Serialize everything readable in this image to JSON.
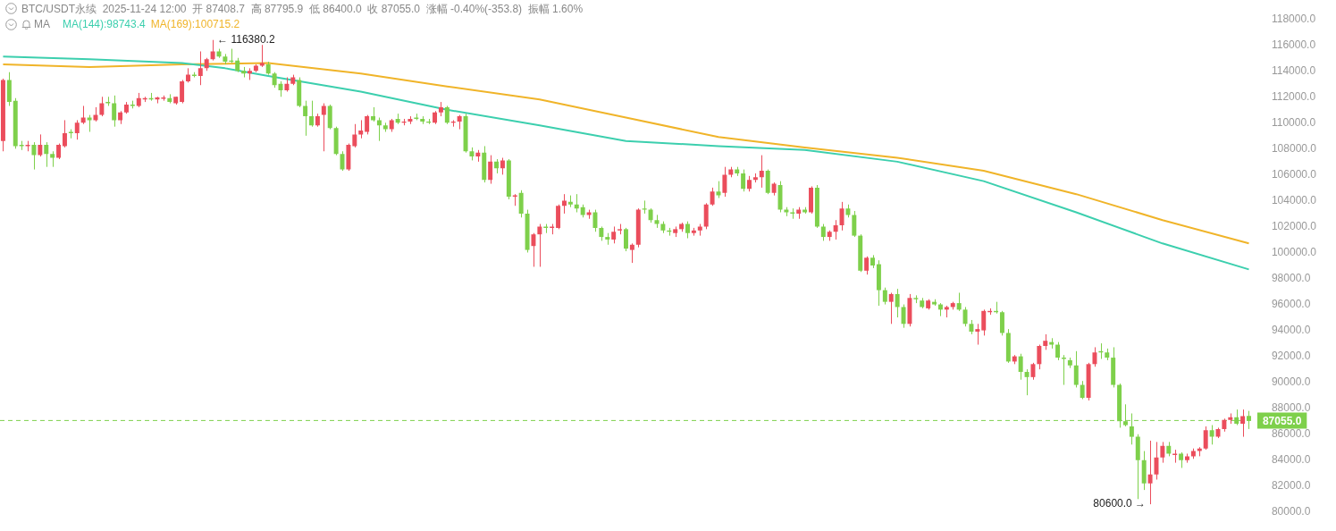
{
  "chart_data": {
    "type": "candlestick",
    "title": "BTC/USDT永续  2025-11-24 12:00  开 87408.7  高 87795.9  低 86400.0  收 87055.0  涨幅 -0.40%(-353.8)  振幅 1.60%",
    "legend_title": "MA",
    "legend": "top left",
    "tick_labels": "y",
    "categories": [
      null,
      null,
      null,
      null,
      null,
      null,
      null,
      null,
      null,
      null,
      null,
      null,
      null,
      null,
      null,
      null,
      null,
      null,
      null,
      null,
      null,
      null,
      null,
      null,
      null,
      null,
      null,
      null,
      null,
      null,
      null,
      null,
      null,
      null,
      null,
      null,
      null,
      null,
      null,
      null,
      null,
      null,
      null,
      null,
      null,
      null,
      null,
      null,
      null,
      null,
      null,
      null,
      null,
      null,
      null,
      null,
      null,
      null,
      null,
      null,
      null,
      null,
      null,
      null,
      null,
      null,
      null,
      null,
      null,
      null,
      null,
      null,
      null,
      null,
      null,
      null,
      null,
      null,
      null,
      null,
      null,
      null,
      null,
      null,
      null,
      null,
      null,
      null,
      null,
      null,
      null,
      null,
      null,
      null,
      null,
      null,
      null,
      null,
      null,
      null,
      null,
      null,
      null,
      null,
      null,
      null,
      null,
      null,
      null,
      null,
      null,
      null,
      null,
      null,
      null,
      null,
      null,
      null,
      null,
      null,
      null,
      null,
      null,
      null,
      null,
      null,
      null,
      null,
      null,
      null,
      null,
      null,
      null,
      null,
      null,
      null,
      null,
      null,
      null,
      null,
      null,
      null,
      null,
      null,
      null,
      null,
      null,
      null,
      null,
      null,
      null,
      null,
      null,
      null,
      null,
      null,
      null,
      null,
      null,
      null,
      null,
      null,
      null,
      null,
      null,
      null,
      null,
      null,
      null,
      null,
      null,
      null,
      null,
      null,
      null,
      null,
      null,
      null,
      null,
      null,
      null,
      null,
      null,
      null,
      null,
      null,
      null,
      null,
      null,
      null,
      null,
      null,
      null,
      null,
      null,
      null,
      null,
      null,
      null,
      null,
      null,
      null,
      null
    ],
    "ohlc": [
      [
        108600,
        113400,
        107800,
        113300
      ],
      [
        113300,
        113900,
        111300,
        111600
      ],
      [
        111700,
        111900,
        108000,
        108200
      ],
      [
        108300,
        108600,
        107900,
        108200
      ],
      [
        108200,
        108600,
        107800,
        108300
      ],
      [
        108300,
        108500,
        106400,
        107500
      ],
      [
        107500,
        109100,
        107400,
        108300
      ],
      [
        108300,
        108500,
        106600,
        107600
      ],
      [
        107600,
        107800,
        106600,
        107300
      ],
      [
        107300,
        108400,
        107200,
        108300
      ],
      [
        108200,
        110200,
        108100,
        109200
      ],
      [
        109300,
        109500,
        108800,
        109200
      ],
      [
        109200,
        110200,
        108700,
        110000
      ],
      [
        110000,
        111300,
        109900,
        110400
      ],
      [
        110400,
        110600,
        109300,
        110200
      ],
      [
        110200,
        111200,
        110100,
        110600
      ],
      [
        110600,
        112000,
        110500,
        111500
      ],
      [
        111600,
        112000,
        111300,
        111500
      ],
      [
        111500,
        112100,
        109700,
        110200
      ],
      [
        110200,
        110900,
        109900,
        110800
      ],
      [
        110800,
        111600,
        110700,
        111400
      ],
      [
        111400,
        111700,
        111100,
        111300
      ],
      [
        111300,
        112300,
        111200,
        111900
      ],
      [
        111800,
        112000,
        111600,
        111900
      ],
      [
        111900,
        112300,
        111700,
        111800
      ],
      [
        111800,
        112000,
        111500,
        111950
      ],
      [
        111850,
        112100,
        111700,
        111950
      ],
      [
        111900,
        112200,
        111500,
        111600
      ],
      [
        111500,
        112000,
        111400,
        112000
      ],
      [
        111600,
        113300,
        111500,
        113200
      ],
      [
        113200,
        114200,
        113100,
        113700
      ],
      [
        113700,
        113900,
        113500,
        113600
      ],
      [
        113600,
        115500,
        112900,
        114200
      ],
      [
        114200,
        115000,
        114000,
        114900
      ],
      [
        114900,
        116380.2,
        114800,
        115500
      ],
      [
        115500,
        115700,
        115000,
        115100
      ],
      [
        115100,
        115300,
        114500,
        114700
      ],
      [
        114800,
        115700,
        114600,
        114700
      ],
      [
        114800,
        115000,
        113900,
        114000
      ],
      [
        114000,
        114300,
        113500,
        113800
      ],
      [
        113800,
        114200,
        113300,
        114000
      ],
      [
        114000,
        114500,
        113900,
        114400
      ],
      [
        114400,
        116000,
        114300,
        114600
      ],
      [
        114500,
        114700,
        113700,
        113800
      ],
      [
        113800,
        113900,
        112700,
        112900
      ],
      [
        113000,
        113200,
        112000,
        112500
      ],
      [
        112500,
        113500,
        112400,
        113000
      ],
      [
        113000,
        113700,
        112900,
        113500
      ],
      [
        113300,
        113500,
        111200,
        111300
      ],
      [
        111300,
        111700,
        109000,
        110500
      ],
      [
        110500,
        111700,
        109700,
        109800
      ],
      [
        109800,
        110700,
        109700,
        110500
      ],
      [
        110600,
        111500,
        107800,
        111300
      ],
      [
        111300,
        111400,
        109500,
        109600
      ],
      [
        109600,
        109700,
        107500,
        107600
      ],
      [
        107600,
        107800,
        106300,
        106400
      ],
      [
        106400,
        108400,
        106300,
        108300
      ],
      [
        108200,
        109900,
        108100,
        109100
      ],
      [
        109100,
        110200,
        108800,
        109400
      ],
      [
        109300,
        110600,
        109100,
        110500
      ],
      [
        110500,
        111200,
        110100,
        110200
      ],
      [
        110200,
        110400,
        108600,
        109800
      ],
      [
        109800,
        110000,
        109300,
        109500
      ],
      [
        109500,
        110300,
        109300,
        110200
      ],
      [
        110300,
        110700,
        109900,
        110000
      ],
      [
        110000,
        110300,
        109800,
        110100
      ],
      [
        110100,
        110500,
        109900,
        110300
      ],
      [
        110400,
        110700,
        110200,
        110300
      ],
      [
        110300,
        110500,
        109900,
        110100
      ],
      [
        110100,
        110300,
        109900,
        110000
      ],
      [
        110000,
        110900,
        109900,
        110800
      ],
      [
        110800,
        111600,
        110500,
        111200
      ],
      [
        111200,
        111300,
        109900,
        110000
      ],
      [
        110000,
        110200,
        109700,
        110100
      ],
      [
        110100,
        110600,
        109500,
        110500
      ],
      [
        110500,
        110700,
        107700,
        107800
      ],
      [
        107800,
        108100,
        107100,
        107400
      ],
      [
        107400,
        107900,
        107000,
        107700
      ],
      [
        107700,
        108200,
        105400,
        105600
      ],
      [
        105600,
        107500,
        105300,
        107000
      ],
      [
        107000,
        107200,
        106100,
        106500
      ],
      [
        106500,
        107300,
        106000,
        107100
      ],
      [
        107100,
        107200,
        104100,
        104300
      ],
      [
        104300,
        104500,
        103600,
        104400
      ],
      [
        104600,
        104800,
        102700,
        103000
      ],
      [
        103000,
        103300,
        100000,
        100200
      ],
      [
        100500,
        101500,
        98900,
        101400
      ],
      [
        101400,
        102200,
        98900,
        102000
      ],
      [
        102000,
        102200,
        101500,
        101900
      ],
      [
        101900,
        102200,
        101400,
        102000
      ],
      [
        101900,
        103700,
        101800,
        103600
      ],
      [
        103600,
        104500,
        103000,
        104000
      ],
      [
        103900,
        104400,
        103500,
        103700
      ],
      [
        103700,
        104500,
        103100,
        103400
      ],
      [
        103500,
        103700,
        102700,
        102900
      ],
      [
        102900,
        103300,
        102600,
        103100
      ],
      [
        103100,
        103300,
        101600,
        101900
      ],
      [
        101900,
        102000,
        100900,
        101200
      ],
      [
        101200,
        101500,
        100600,
        101000
      ],
      [
        101000,
        102000,
        100700,
        101600
      ],
      [
        101700,
        102200,
        101400,
        101800
      ],
      [
        101800,
        101900,
        100100,
        100300
      ],
      [
        100200,
        100700,
        99200,
        100600
      ],
      [
        100600,
        103400,
        100400,
        103300
      ],
      [
        103400,
        104000,
        103000,
        103300
      ],
      [
        103300,
        103400,
        102300,
        102500
      ],
      [
        102500,
        102900,
        101900,
        102200
      ],
      [
        102200,
        102400,
        101500,
        101700
      ],
      [
        101700,
        101900,
        101300,
        101600
      ],
      [
        101500,
        102000,
        101200,
        101800
      ],
      [
        101800,
        102300,
        101600,
        102200
      ],
      [
        102200,
        102400,
        101100,
        101500
      ],
      [
        101500,
        101900,
        101300,
        101700
      ],
      [
        101700,
        102200,
        101300,
        102000
      ],
      [
        102000,
        103800,
        101800,
        103700
      ],
      [
        103700,
        105000,
        103600,
        104700
      ],
      [
        104700,
        105500,
        104200,
        104400
      ],
      [
        104600,
        106600,
        104300,
        106000
      ],
      [
        106000,
        106600,
        105800,
        106400
      ],
      [
        106400,
        106600,
        105900,
        106100
      ],
      [
        106100,
        106400,
        104700,
        104900
      ],
      [
        104900,
        105900,
        104700,
        105600
      ],
      [
        105600,
        106100,
        105400,
        105800
      ],
      [
        105800,
        107500,
        105000,
        106300
      ],
      [
        106300,
        106400,
        104500,
        104600
      ],
      [
        104600,
        105400,
        104400,
        105300
      ],
      [
        105200,
        105500,
        103100,
        103300
      ],
      [
        103300,
        103500,
        102800,
        103100
      ],
      [
        103100,
        103400,
        102600,
        103000
      ],
      [
        103000,
        103500,
        102600,
        103300
      ],
      [
        103300,
        103500,
        103000,
        103100
      ],
      [
        103100,
        105100,
        103000,
        105000
      ],
      [
        105000,
        105200,
        101900,
        102000
      ],
      [
        102000,
        102200,
        100900,
        101200
      ],
      [
        101200,
        101700,
        100900,
        101600
      ],
      [
        101600,
        102500,
        101000,
        102100
      ],
      [
        102100,
        103900,
        101700,
        103400
      ],
      [
        103400,
        103700,
        102700,
        102900
      ],
      [
        102900,
        103200,
        101200,
        101300
      ],
      [
        101300,
        101400,
        98500,
        98600
      ],
      [
        98600,
        99700,
        98300,
        99600
      ],
      [
        99600,
        99800,
        98800,
        99000
      ],
      [
        99100,
        99400,
        95900,
        97100
      ],
      [
        97100,
        97300,
        96000,
        96200
      ],
      [
        96200,
        96900,
        94500,
        96800
      ],
      [
        96800,
        97200,
        95000,
        95800
      ],
      [
        95800,
        96000,
        94200,
        94500
      ],
      [
        94500,
        96800,
        94300,
        96500
      ],
      [
        96500,
        96700,
        96100,
        96400
      ],
      [
        96300,
        96500,
        95700,
        95800
      ],
      [
        95700,
        96400,
        95600,
        96300
      ],
      [
        96200,
        96400,
        95900,
        96000
      ],
      [
        96000,
        96100,
        95100,
        95600
      ],
      [
        95600,
        95900,
        95000,
        95800
      ],
      [
        95800,
        96200,
        95600,
        96100
      ],
      [
        96100,
        96900,
        95500,
        95600
      ],
      [
        95600,
        95800,
        94300,
        94500
      ],
      [
        94500,
        94800,
        93700,
        93900
      ],
      [
        93900,
        94500,
        92900,
        94100
      ],
      [
        94000,
        95600,
        93600,
        95500
      ],
      [
        95400,
        95700,
        95200,
        95500
      ],
      [
        95500,
        96200,
        95300,
        95400
      ],
      [
        95400,
        95500,
        93600,
        93800
      ],
      [
        93800,
        94100,
        91500,
        91600
      ],
      [
        91600,
        92100,
        91400,
        92000
      ],
      [
        92000,
        92200,
        90200,
        90800
      ],
      [
        90800,
        91000,
        89000,
        90400
      ],
      [
        90400,
        91500,
        90200,
        91400
      ],
      [
        91400,
        92900,
        91000,
        92800
      ],
      [
        92800,
        93700,
        92500,
        93200
      ],
      [
        93100,
        93400,
        92600,
        92900
      ],
      [
        92900,
        93100,
        91700,
        91900
      ],
      [
        91900,
        92100,
        89800,
        91800
      ],
      [
        91700,
        91900,
        91100,
        91300
      ],
      [
        91300,
        92400,
        89600,
        89800
      ],
      [
        89800,
        90100,
        88700,
        88800
      ],
      [
        88800,
        91500,
        88600,
        91400
      ],
      [
        91400,
        92700,
        91200,
        92300
      ],
      [
        92400,
        93000,
        91800,
        92300
      ],
      [
        92300,
        92600,
        91700,
        91900
      ],
      [
        91900,
        92700,
        89600,
        89800
      ],
      [
        89800,
        89900,
        86500,
        87000
      ],
      [
        87000,
        88300,
        86600,
        86700
      ],
      [
        86600,
        87600,
        85200,
        85800
      ],
      [
        85800,
        86000,
        81000,
        84000
      ],
      [
        84000,
        84700,
        81700,
        82200
      ],
      [
        82200,
        85500,
        80600.0,
        82900
      ],
      [
        82900,
        85400,
        82500,
        84200
      ],
      [
        84200,
        85400,
        83800,
        85100
      ],
      [
        85100,
        85400,
        84300,
        84500
      ],
      [
        84400,
        84800,
        83800,
        84500
      ],
      [
        84500,
        84600,
        83400,
        84000
      ],
      [
        84000,
        84500,
        83800,
        84300
      ],
      [
        84300,
        84900,
        84100,
        84700
      ],
      [
        84700,
        85000,
        84300,
        84900
      ],
      [
        84900,
        86600,
        84800,
        86300
      ],
      [
        86300,
        86700,
        85200,
        85800
      ],
      [
        85800,
        86500,
        85700,
        86400
      ],
      [
        86400,
        87200,
        86200,
        87100
      ],
      [
        87100,
        87600,
        86800,
        87300
      ],
      [
        87300,
        87900,
        86700,
        86800
      ],
      [
        86800,
        87900,
        85800,
        87400
      ],
      [
        87408.7,
        87795.9,
        86400.0,
        87055.0
      ]
    ],
    "colors": [
      "#eb4d5c",
      "#7ed04b",
      "#7ed04b",
      "#7ed04b",
      "#eb4d5c",
      "#7ed04b",
      "#eb4d5c",
      "#7ed04b",
      "#7ed04b",
      "#eb4d5c",
      "#eb4d5c",
      "#7ed04b",
      "#eb4d5c",
      "#eb4d5c",
      "#7ed04b",
      "#eb4d5c",
      "#eb4d5c",
      "#7ed04b",
      "#7ed04b",
      "#eb4d5c",
      "#eb4d5c",
      "#7ed04b",
      "#eb4d5c",
      "#eb4d5c",
      "#7ed04b",
      "#eb4d5c",
      "#eb4d5c",
      "#7ed04b",
      "#eb4d5c",
      "#eb4d5c",
      "#eb4d5c",
      "#7ed04b",
      "#eb4d5c",
      "#eb4d5c",
      "#eb4d5c",
      "#7ed04b",
      "#7ed04b",
      "#7ed04b",
      "#7ed04b",
      "#7ed04b",
      "#eb4d5c",
      "#eb4d5c",
      "#eb4d5c",
      "#7ed04b",
      "#7ed04b",
      "#7ed04b",
      "#eb4d5c",
      "#eb4d5c",
      "#7ed04b",
      "#7ed04b",
      "#7ed04b",
      "#eb4d5c",
      "#eb4d5c",
      "#7ed04b",
      "#7ed04b",
      "#7ed04b",
      "#eb4d5c",
      "#eb4d5c",
      "#eb4d5c",
      "#eb4d5c",
      "#7ed04b",
      "#7ed04b",
      "#7ed04b",
      "#eb4d5c",
      "#7ed04b",
      "#eb4d5c",
      "#eb4d5c",
      "#7ed04b",
      "#7ed04b",
      "#7ed04b",
      "#eb4d5c",
      "#eb4d5c",
      "#7ed04b",
      "#eb4d5c",
      "#eb4d5c",
      "#7ed04b",
      "#7ed04b",
      "#eb4d5c",
      "#7ed04b",
      "#eb4d5c",
      "#7ed04b",
      "#eb4d5c",
      "#7ed04b",
      "#eb4d5c",
      "#7ed04b",
      "#7ed04b",
      "#eb4d5c",
      "#eb4d5c",
      "#7ed04b",
      "#eb4d5c",
      "#eb4d5c",
      "#eb4d5c",
      "#7ed04b",
      "#7ed04b",
      "#7ed04b",
      "#eb4d5c",
      "#7ed04b",
      "#7ed04b",
      "#7ed04b",
      "#eb4d5c",
      "#eb4d5c",
      "#7ed04b",
      "#eb4d5c",
      "#eb4d5c",
      "#7ed04b",
      "#7ed04b",
      "#7ed04b",
      "#7ed04b",
      "#7ed04b",
      "#eb4d5c",
      "#eb4d5c",
      "#7ed04b",
      "#eb4d5c",
      "#eb4d5c",
      "#eb4d5c",
      "#eb4d5c",
      "#7ed04b",
      "#eb4d5c",
      "#eb4d5c",
      "#7ed04b",
      "#7ed04b",
      "#eb4d5c",
      "#eb4d5c",
      "#eb4d5c",
      "#7ed04b",
      "#eb4d5c",
      "#7ed04b",
      "#7ed04b",
      "#7ed04b",
      "#eb4d5c",
      "#7ed04b",
      "#eb4d5c",
      "#7ed04b",
      "#7ed04b",
      "#eb4d5c",
      "#eb4d5c",
      "#eb4d5c",
      "#7ed04b",
      "#7ed04b",
      "#7ed04b",
      "#eb4d5c",
      "#7ed04b",
      "#7ed04b",
      "#7ed04b",
      "#eb4d5c",
      "#7ed04b",
      "#7ed04b",
      "#eb4d5c",
      "#7ed04b",
      "#7ed04b",
      "#eb4d5c",
      "#7ed04b",
      "#7ed04b",
      "#eb4d5c",
      "#eb4d5c",
      "#7ed04b",
      "#7ed04b",
      "#7ed04b",
      "#eb4d5c",
      "#eb4d5c",
      "#eb4d5c",
      "#7ed04b",
      "#7ed04b",
      "#7ed04b",
      "#eb4d5c",
      "#7ed04b",
      "#7ed04b",
      "#eb4d5c",
      "#eb4d5c",
      "#eb4d5c",
      "#7ed04b",
      "#7ed04b",
      "#7ed04b",
      "#7ed04b",
      "#7ed04b",
      "#7ed04b",
      "#eb4d5c",
      "#eb4d5c",
      "#7ed04b",
      "#7ed04b",
      "#7ed04b",
      "#7ed04b",
      "#7ed04b",
      "#7ed04b",
      "#7ed04b",
      "#7ed04b",
      "#eb4d5c",
      "#eb4d5c",
      "#eb4d5c",
      "#7ed04b",
      "#eb4d5c",
      "#7ed04b",
      "#eb4d5c",
      "#eb4d5c",
      "#eb4d5c",
      "#eb4d5c",
      "#7ed04b",
      "#eb4d5c",
      "#eb4d5c",
      "#eb4d5c",
      "#7ed04b",
      "#eb4d5c",
      "#7ed04b"
    ],
    "series": [
      {
        "type": "line",
        "name": "MA(144):98743.4",
        "color": "#3ccfae",
        "values": [
          115100,
          null,
          null,
          null,
          null,
          null,
          null,
          null,
          null,
          null,
          null,
          null,
          null,
          null,
          114900,
          null,
          null,
          null,
          null,
          null,
          null,
          null,
          null,
          null,
          null,
          null,
          null,
          null,
          null,
          114600,
          null,
          null,
          null,
          null,
          null,
          null,
          114200,
          null,
          null,
          null,
          null,
          null,
          null,
          113600,
          null,
          null,
          null,
          null,
          null,
          null,
          null,
          null,
          null,
          null,
          null,
          null,
          null,
          null,
          112400,
          null,
          null,
          null,
          null,
          null,
          null,
          null,
          null,
          null,
          null,
          null,
          null,
          null,
          111000,
          null,
          null,
          null,
          null,
          null,
          null,
          null,
          null,
          null,
          null,
          null,
          null,
          null,
          null,
          109800,
          null,
          null,
          null,
          null,
          null,
          null,
          null,
          null,
          null,
          null,
          null,
          null,
          null,
          108600,
          null,
          null,
          null,
          null,
          null,
          null,
          null,
          null,
          null,
          null,
          null,
          null,
          null,
          null,
          108200,
          null,
          null,
          null,
          null,
          null,
          null,
          null,
          null,
          null,
          null,
          null,
          null,
          null,
          107900,
          null,
          null,
          null,
          null,
          null,
          null,
          null,
          null,
          null,
          null,
          null,
          null,
          null,
          null,
          107000,
          null,
          null,
          null,
          null,
          null,
          null,
          null,
          null,
          null,
          null,
          null,
          null,
          null,
          105500,
          null,
          null,
          null,
          null,
          null,
          null,
          null,
          null,
          null,
          null,
          null,
          null,
          null,
          null,
          103100,
          null,
          null,
          null,
          null,
          null,
          null,
          null,
          null,
          null,
          null,
          null,
          null,
          null,
          100700,
          null,
          null,
          null,
          null,
          null,
          null,
          null,
          null,
          null,
          null,
          null,
          null,
          null,
          98700
        ]
      },
      {
        "type": "line",
        "name": "MA(169):100715.2",
        "color": "#f0b429",
        "values": [
          114500,
          null,
          null,
          null,
          null,
          null,
          null,
          null,
          null,
          null,
          null,
          null,
          null,
          null,
          114300,
          null,
          null,
          null,
          null,
          null,
          null,
          null,
          null,
          null,
          null,
          null,
          null,
          null,
          null,
          114500,
          null,
          null,
          null,
          null,
          null,
          null,
          null,
          null,
          null,
          null,
          null,
          null,
          null,
          114600,
          null,
          null,
          null,
          null,
          null,
          null,
          null,
          null,
          null,
          null,
          null,
          null,
          null,
          null,
          113800,
          null,
          null,
          null,
          null,
          null,
          null,
          null,
          null,
          null,
          null,
          null,
          null,
          null,
          112800,
          null,
          null,
          null,
          null,
          null,
          null,
          null,
          null,
          null,
          null,
          null,
          null,
          null,
          null,
          111800,
          null,
          null,
          null,
          null,
          null,
          null,
          null,
          null,
          null,
          null,
          null,
          null,
          null,
          110400,
          null,
          null,
          null,
          null,
          null,
          null,
          null,
          null,
          null,
          null,
          null,
          null,
          null,
          null,
          108900,
          null,
          null,
          null,
          null,
          null,
          null,
          null,
          null,
          null,
          null,
          null,
          null,
          null,
          108100,
          null,
          null,
          null,
          null,
          null,
          null,
          null,
          null,
          null,
          null,
          null,
          null,
          null,
          null,
          107300,
          null,
          null,
          null,
          null,
          null,
          null,
          null,
          null,
          null,
          null,
          null,
          null,
          null,
          106300,
          null,
          null,
          null,
          null,
          null,
          null,
          null,
          null,
          null,
          null,
          null,
          null,
          null,
          null,
          104500,
          null,
          null,
          null,
          null,
          null,
          null,
          null,
          null,
          null,
          null,
          null,
          null,
          null,
          102500,
          null,
          null,
          null,
          null,
          null,
          null,
          null,
          null,
          null,
          null,
          null,
          null,
          null,
          100700
        ]
      }
    ],
    "ylim": [
      80000,
      118000
    ],
    "yticks": [
      {
        "value": 80000,
        "label": "80000.0"
      },
      {
        "value": 82000,
        "label": "82000.0"
      },
      {
        "value": 84000,
        "label": "84000.0"
      },
      {
        "value": 86000,
        "label": "86000.0"
      },
      {
        "value": 88000,
        "label": "88000.0"
      },
      {
        "value": 90000,
        "label": "90000.0"
      },
      {
        "value": 92000,
        "label": "92000.0"
      },
      {
        "value": 94000,
        "label": "94000.0"
      },
      {
        "value": 96000,
        "label": "96000.0"
      },
      {
        "value": 98000,
        "label": "98000.0"
      },
      {
        "value": 100000,
        "label": "100000.0"
      },
      {
        "value": 102000,
        "label": "102000.0"
      },
      {
        "value": 104000,
        "label": "104000.0"
      },
      {
        "value": 106000,
        "label": "106000.0"
      },
      {
        "value": 108000,
        "label": "108000.0"
      },
      {
        "value": 110000,
        "label": "110000.0"
      },
      {
        "value": 112000,
        "label": "112000.0"
      },
      {
        "value": 114000,
        "label": "114000.0"
      },
      {
        "value": 116000,
        "label": "116000.0"
      },
      {
        "value": 118000,
        "label": "118000.0"
      }
    ],
    "ref_lines": [
      {
        "axis": "y",
        "value": 87055.0,
        "label": "87055.0",
        "color": "#7ed04b",
        "line_style": "dashed"
      }
    ],
    "annotations": [
      "← 116380.2",
      "80600.0 →"
    ]
  }
}
